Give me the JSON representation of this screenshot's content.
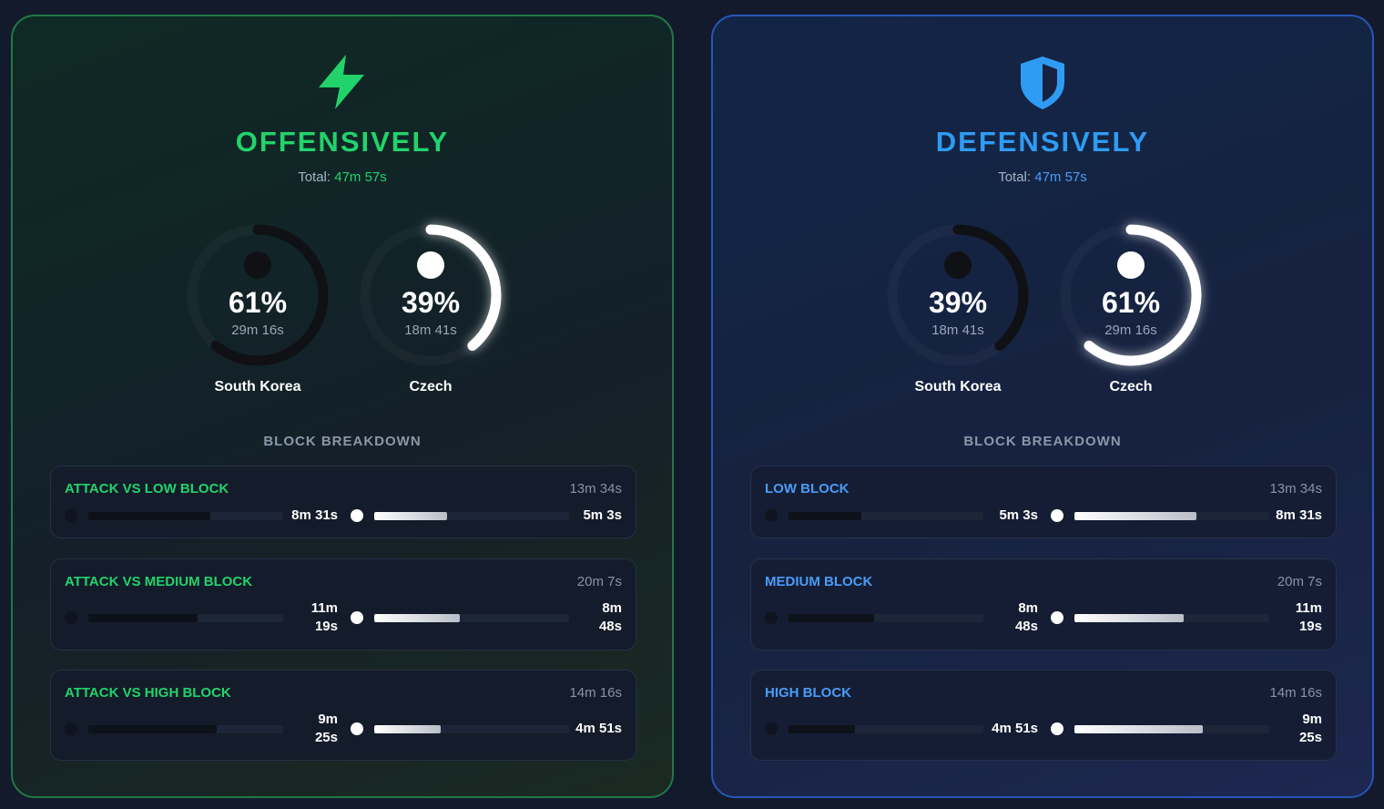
{
  "colors": {
    "offense_accent": "#22d36b",
    "defense_accent": "#2f9cf4",
    "defense_total": "#4a9cf8",
    "ring_dark": "#0f1115",
    "ring_light": "#ffffff"
  },
  "offense": {
    "icon": "lightning-bolt-icon",
    "title": "OFFENSIVELY",
    "total_label": "Total: ",
    "total_value": "47m 57s",
    "donuts": [
      {
        "pct": "61%",
        "duration": "29m 16s",
        "team": "South Korea",
        "fraction": 0.61,
        "style": "dark"
      },
      {
        "pct": "39%",
        "duration": "18m 41s",
        "team": "Czech",
        "fraction": 0.39,
        "style": "light"
      }
    ],
    "section_label": "BLOCK BREAKDOWN",
    "blocks": [
      {
        "name": "ATTACK VS LOW BLOCK",
        "total": "13m 34s",
        "a_value": "8m 31s",
        "b_value": "5m 3s",
        "a_fraction": 0.628,
        "b_fraction": 0.372
      },
      {
        "name": "ATTACK VS MEDIUM BLOCK",
        "total": "20m 7s",
        "a_value": "11m 19s",
        "b_value": "8m 48s",
        "a_fraction": 0.562,
        "b_fraction": 0.438
      },
      {
        "name": "ATTACK VS HIGH BLOCK",
        "total": "14m 16s",
        "a_value": "9m 25s",
        "b_value": "4m 51s",
        "a_fraction": 0.66,
        "b_fraction": 0.34
      }
    ]
  },
  "defense": {
    "icon": "shield-icon",
    "title": "DEFENSIVELY",
    "total_label": "Total: ",
    "total_value": "47m 57s",
    "donuts": [
      {
        "pct": "39%",
        "duration": "18m 41s",
        "team": "South Korea",
        "fraction": 0.39,
        "style": "dark"
      },
      {
        "pct": "61%",
        "duration": "29m 16s",
        "team": "Czech",
        "fraction": 0.61,
        "style": "light"
      }
    ],
    "section_label": "BLOCK BREAKDOWN",
    "blocks": [
      {
        "name": "LOW BLOCK",
        "total": "13m 34s",
        "a_value": "5m 3s",
        "b_value": "8m 31s",
        "a_fraction": 0.372,
        "b_fraction": 0.628
      },
      {
        "name": "MEDIUM BLOCK",
        "total": "20m 7s",
        "a_value": "8m 48s",
        "b_value": "11m 19s",
        "a_fraction": 0.438,
        "b_fraction": 0.562
      },
      {
        "name": "HIGH BLOCK",
        "total": "14m 16s",
        "a_value": "4m 51s",
        "b_value": "9m 25s",
        "a_fraction": 0.34,
        "b_fraction": 0.66
      }
    ]
  }
}
